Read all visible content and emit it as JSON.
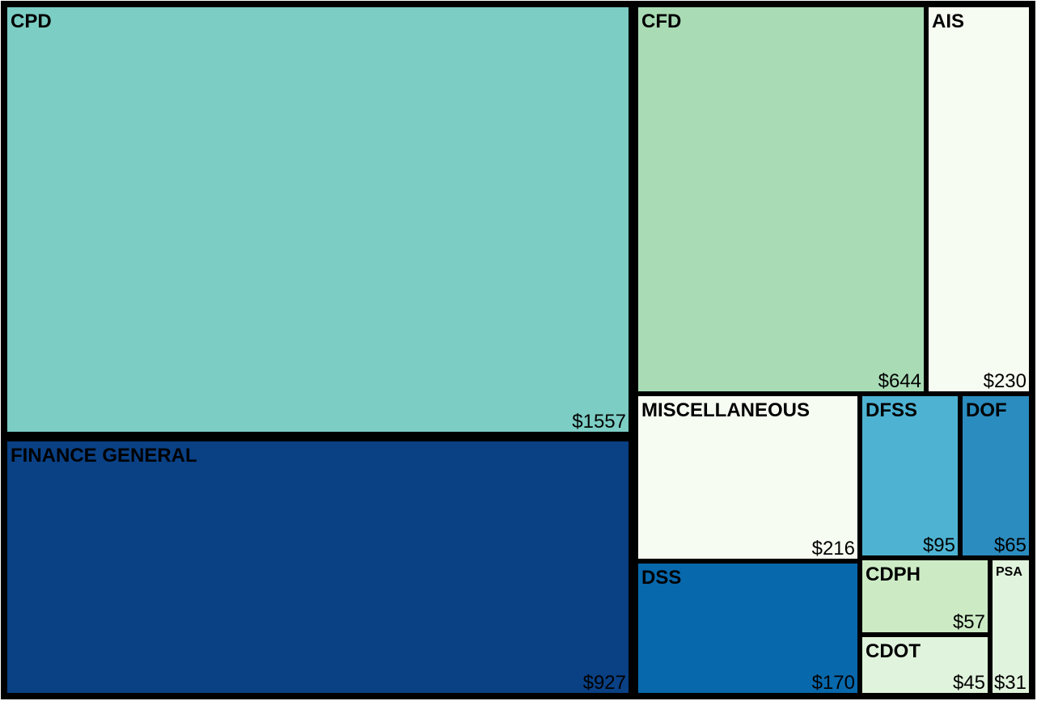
{
  "chart_data": {
    "type": "treemap",
    "value_prefix": "$",
    "tiles": [
      {
        "label": "CPD",
        "value": 1557,
        "value_label": "$1557",
        "color": "#7ccdc4"
      },
      {
        "label": "FINANCE GENERAL",
        "value": 927,
        "value_label": "$927",
        "color": "#0a4084"
      },
      {
        "label": "CFD",
        "value": 644,
        "value_label": "$644",
        "color": "#a9dcb5"
      },
      {
        "label": "AIS",
        "value": 230,
        "value_label": "$230",
        "color": "#f6fcf1"
      },
      {
        "label": "MISCELLANEOUS",
        "value": 216,
        "value_label": "$216",
        "color": "#f6fcf1"
      },
      {
        "label": "DSS",
        "value": 170,
        "value_label": "$170",
        "color": "#0868ac"
      },
      {
        "label": "DFSS",
        "value": 95,
        "value_label": "$95",
        "color": "#4eb3d3"
      },
      {
        "label": "DOF",
        "value": 65,
        "value_label": "$65",
        "color": "#2b8cbf"
      },
      {
        "label": "CDPH",
        "value": 57,
        "value_label": "$57",
        "color": "#ccebc5"
      },
      {
        "label": "CDOT",
        "value": 45,
        "value_label": "$45",
        "color": "#e0f3dc"
      },
      {
        "label": "PSA",
        "value": 31,
        "value_label": "$31",
        "color": "#e0f3dc"
      }
    ]
  }
}
